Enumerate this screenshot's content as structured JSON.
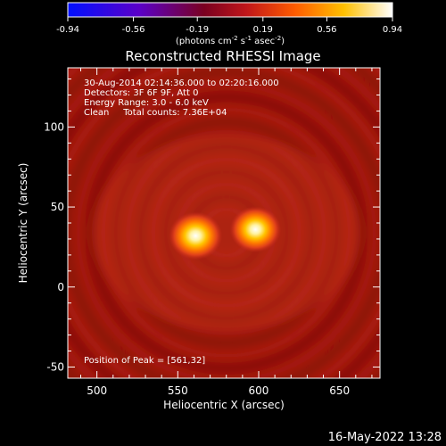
{
  "chart_data": {
    "type": "heatmap",
    "title": "Reconstructed RHESSI Image",
    "xlabel": "Heliocentric X (arcsec)",
    "ylabel": "Heliocentric Y (arcsec)",
    "xlim": [
      482,
      675
    ],
    "ylim": [
      -57,
      137
    ],
    "x_ticks": [
      500,
      550,
      600,
      650
    ],
    "y_ticks": [
      -50,
      0,
      50,
      100
    ],
    "colorbar": {
      "min": -0.94,
      "max": 0.94,
      "ticks": [
        "-0.94",
        "-0.56",
        "-0.19",
        "0.19",
        "0.56",
        "0.94"
      ],
      "unit_prefix": "(photons cm",
      "unit_exp1": "-2",
      "unit_mid": " s",
      "unit_exp2": "-1",
      "unit_mid2": " asec",
      "unit_exp3": "-2",
      "unit_suffix": ")"
    },
    "info_lines": [
      "30-Aug-2014 02:14:36.000 to 02:20:16.000",
      "Detectors: 3F 6F 9F, Att 0",
      "Energy Range: 3.0 - 6.0 keV",
      "Clean     Total counts: 7.36E+04"
    ],
    "peak_label": "Position of Peak = [561,32]",
    "sources": [
      {
        "x": 561,
        "y": 32,
        "peak": 0.94
      },
      {
        "x": 598,
        "y": 36,
        "peak": 0.9
      }
    ],
    "background_level": 0.25,
    "grid": false
  },
  "footer": {
    "date": "16-May-2022 13:28"
  },
  "colors": {
    "background": "#000000",
    "foreground": "#ffffff"
  }
}
